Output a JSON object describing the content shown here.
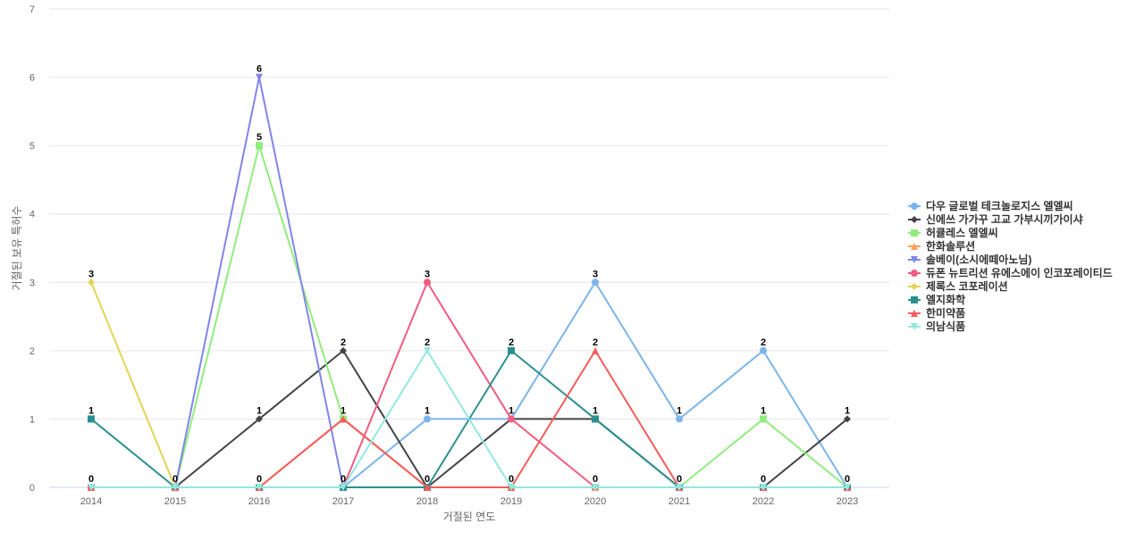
{
  "chart_data": {
    "type": "line",
    "title": "",
    "xlabel": "거절된 연도",
    "ylabel": "거절된 보유 특허수",
    "ylim": [
      0,
      7
    ],
    "yticks": [
      0,
      1,
      2,
      3,
      4,
      5,
      6,
      7
    ],
    "grid": true,
    "legend_position": "right",
    "categories": [
      "2014",
      "2015",
      "2016",
      "2017",
      "2018",
      "2019",
      "2020",
      "2021",
      "2022",
      "2023"
    ],
    "series": [
      {
        "name": "다우 글로벌 테크놀로지스 엘엘씨",
        "color": "#7cb5ec",
        "marker": "circle",
        "values": [
          0,
          0,
          0,
          0,
          1,
          1,
          3,
          1,
          2,
          0
        ]
      },
      {
        "name": "신에쓰 가가꾸 고교 가부시끼가이샤",
        "color": "#434348",
        "marker": "diamond",
        "values": [
          0,
          0,
          1,
          2,
          0,
          1,
          1,
          0,
          0,
          1
        ]
      },
      {
        "name": "허큘레스 엘엘씨",
        "color": "#90ed7d",
        "marker": "square",
        "values": [
          0,
          0,
          5,
          1,
          0,
          0,
          0,
          0,
          1,
          0
        ]
      },
      {
        "name": "한화솔루션",
        "color": "#f7a35c",
        "marker": "triangle",
        "values": [
          0,
          0,
          0,
          1,
          0,
          0,
          0,
          0,
          0,
          0
        ]
      },
      {
        "name": "솔베이(소시에떼아노님)",
        "color": "#8085e9",
        "marker": "triangle-down",
        "values": [
          0,
          0,
          6,
          0,
          0,
          0,
          0,
          0,
          0,
          0
        ]
      },
      {
        "name": "듀폰 뉴트리션 유에스에이 인코포레이티드",
        "color": "#f15c80",
        "marker": "circle",
        "values": [
          0,
          0,
          0,
          0,
          3,
          1,
          0,
          0,
          0,
          0
        ]
      },
      {
        "name": "제록스 코포레이션",
        "color": "#e4d354",
        "marker": "diamond",
        "values": [
          3,
          0,
          0,
          0,
          0,
          0,
          0,
          0,
          0,
          0
        ]
      },
      {
        "name": "엘지화학",
        "color": "#2b908f",
        "marker": "square",
        "values": [
          1,
          0,
          0,
          0,
          0,
          2,
          1,
          0,
          0,
          0
        ]
      },
      {
        "name": "한미약품",
        "color": "#f45b5b",
        "marker": "triangle",
        "values": [
          0,
          0,
          0,
          1,
          0,
          0,
          2,
          0,
          0,
          0
        ]
      },
      {
        "name": "의남식품",
        "color": "#91e8e1",
        "marker": "triangle-down",
        "values": [
          0,
          0,
          0,
          0,
          2,
          0,
          0,
          0,
          0,
          0
        ]
      }
    ],
    "data_labels": [
      {
        "x": "2014",
        "y": 3,
        "text": "3"
      },
      {
        "x": "2014",
        "y": 1,
        "text": "1"
      },
      {
        "x": "2014",
        "y": 0,
        "text": "0"
      },
      {
        "x": "2015",
        "y": 0,
        "text": "0"
      },
      {
        "x": "2016",
        "y": 6,
        "text": "6"
      },
      {
        "x": "2016",
        "y": 5,
        "text": "5"
      },
      {
        "x": "2016",
        "y": 1,
        "text": "1"
      },
      {
        "x": "2016",
        "y": 0,
        "text": "0"
      },
      {
        "x": "2017",
        "y": 2,
        "text": "2"
      },
      {
        "x": "2017",
        "y": 1,
        "text": "1"
      },
      {
        "x": "2017",
        "y": 0,
        "text": "0"
      },
      {
        "x": "2018",
        "y": 3,
        "text": "3"
      },
      {
        "x": "2018",
        "y": 2,
        "text": "2"
      },
      {
        "x": "2018",
        "y": 1,
        "text": "1"
      },
      {
        "x": "2018",
        "y": 0,
        "text": "0"
      },
      {
        "x": "2019",
        "y": 2,
        "text": "2"
      },
      {
        "x": "2019",
        "y": 1,
        "text": "1"
      },
      {
        "x": "2019",
        "y": 0,
        "text": "0"
      },
      {
        "x": "2020",
        "y": 3,
        "text": "3"
      },
      {
        "x": "2020",
        "y": 2,
        "text": "2"
      },
      {
        "x": "2020",
        "y": 1,
        "text": "1"
      },
      {
        "x": "2020",
        "y": 0,
        "text": "0"
      },
      {
        "x": "2021",
        "y": 1,
        "text": "1"
      },
      {
        "x": "2021",
        "y": 0,
        "text": "0"
      },
      {
        "x": "2022",
        "y": 2,
        "text": "2"
      },
      {
        "x": "2022",
        "y": 1,
        "text": "1"
      },
      {
        "x": "2022",
        "y": 0,
        "text": "0"
      },
      {
        "x": "2023",
        "y": 1,
        "text": "1"
      },
      {
        "x": "2023",
        "y": 0,
        "text": "0"
      }
    ]
  }
}
